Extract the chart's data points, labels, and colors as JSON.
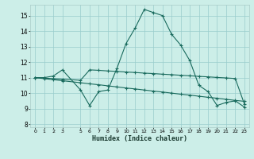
{
  "xlabel": "Humidex (Indice chaleur)",
  "background_color": "#cceee8",
  "grid_color": "#99cccc",
  "line_color": "#1a6b5e",
  "xlim": [
    -0.5,
    23.5
  ],
  "ylim": [
    7.8,
    15.7
  ],
  "yticks": [
    8,
    9,
    10,
    11,
    12,
    13,
    14,
    15
  ],
  "xtick_positions": [
    0,
    1,
    2,
    3,
    5,
    6,
    7,
    8,
    9,
    10,
    11,
    12,
    13,
    14,
    15,
    16,
    17,
    18,
    19,
    20,
    21,
    22,
    23
  ],
  "xtick_labels": [
    "0",
    "1",
    "2",
    "3",
    "5",
    "6",
    "7",
    "8",
    "9",
    "10",
    "11",
    "12",
    "13",
    "14",
    "15",
    "16",
    "17",
    "18",
    "19",
    "20",
    "21",
    "22",
    "23"
  ],
  "series1_x": [
    0,
    1,
    2,
    3,
    5,
    6,
    7,
    8,
    9,
    10,
    11,
    12,
    13,
    14,
    15,
    16,
    17,
    18,
    19,
    20,
    21,
    22,
    23
  ],
  "series1_y": [
    11.0,
    11.0,
    11.1,
    11.5,
    10.2,
    9.2,
    10.1,
    10.2,
    11.6,
    13.2,
    14.2,
    15.4,
    15.2,
    15.0,
    13.8,
    13.1,
    12.1,
    10.5,
    10.1,
    9.2,
    9.4,
    9.5,
    9.1
  ],
  "series2_x": [
    0,
    1,
    2,
    3,
    5,
    6,
    7,
    8,
    9,
    10,
    11,
    12,
    13,
    14,
    15,
    16,
    17,
    18,
    19,
    20,
    21,
    22,
    23
  ],
  "series2_y": [
    11.0,
    10.93,
    10.87,
    10.8,
    10.67,
    10.6,
    10.54,
    10.47,
    10.4,
    10.33,
    10.27,
    10.2,
    10.13,
    10.07,
    10.0,
    9.93,
    9.87,
    9.8,
    9.73,
    9.67,
    9.6,
    9.53,
    9.47
  ],
  "series3_x": [
    0,
    1,
    2,
    3,
    5,
    6,
    7,
    8,
    9,
    10,
    11,
    12,
    13,
    14,
    15,
    16,
    17,
    18,
    19,
    20,
    21,
    22,
    23
  ],
  "series3_y": [
    11.0,
    10.97,
    10.93,
    10.9,
    10.83,
    11.5,
    11.47,
    11.43,
    11.4,
    11.36,
    11.33,
    11.29,
    11.26,
    11.22,
    11.19,
    11.15,
    11.12,
    11.08,
    11.05,
    11.01,
    10.98,
    10.94,
    9.3
  ]
}
